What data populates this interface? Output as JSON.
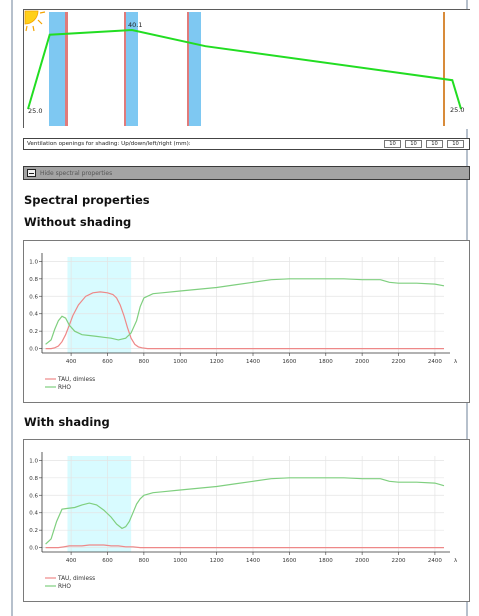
{
  "temperature_profile": {
    "left_value_label": "25.0",
    "peak_value_label": "40.1",
    "right_value_label": "25.0",
    "sun_icon": "sun-icon",
    "line_color": "#22dd22",
    "pane_color": "#7ec8f2",
    "coating_color": "#e07b7b",
    "exterior_color": "#d88b3a",
    "profile_points": [
      {
        "position": 0.0,
        "temp": 25.0
      },
      {
        "position": 0.05,
        "temp": 39.2
      },
      {
        "position": 0.24,
        "temp": 40.1
      },
      {
        "position": 0.41,
        "temp": 37.0
      },
      {
        "position": 0.98,
        "temp": 30.5
      },
      {
        "position": 1.0,
        "temp": 25.0
      }
    ]
  },
  "ventilation": {
    "label": "Ventilation openings for shading: Up/down/left/right (mm):",
    "values": [
      "10",
      "10",
      "10",
      "10"
    ]
  },
  "hide_button": {
    "label": "Hide spectral properties",
    "icon": "collapse-minus-icon"
  },
  "spectral": {
    "heading": "Spectral properties",
    "without_heading": "Without shading",
    "with_heading": "With shading"
  },
  "chart_data": [
    {
      "type": "line",
      "title": "Without shading",
      "xlabel": "λ",
      "ylabel": "",
      "xlim": [
        240,
        2450
      ],
      "ylim": [
        -0.05,
        1.05
      ],
      "xticks": [
        400,
        600,
        800,
        1000,
        1200,
        1400,
        1600,
        1800,
        2000,
        2200,
        2400
      ],
      "yticks": [
        0.0,
        0.2,
        0.4,
        0.6,
        0.8,
        1.0
      ],
      "ytick_labels": [
        "0.0",
        "0.2",
        "0.4",
        "0.6",
        "0.8",
        "1.0"
      ],
      "grid": true,
      "legend_position": "bottom-left",
      "highlight_band": [
        380,
        730
      ],
      "highlight_color": "#d8fbff",
      "series": [
        {
          "name": "TAU, dimless",
          "color": "#ee8888",
          "x": [
            260,
            290,
            310,
            330,
            350,
            370,
            390,
            410,
            440,
            480,
            520,
            560,
            600,
            630,
            650,
            670,
            690,
            710,
            730,
            750,
            770,
            790,
            820,
            900,
            1200,
            1600,
            2000,
            2400,
            2450
          ],
          "y": [
            0.0,
            0.0,
            0.01,
            0.03,
            0.08,
            0.16,
            0.27,
            0.38,
            0.5,
            0.6,
            0.64,
            0.65,
            0.64,
            0.62,
            0.58,
            0.5,
            0.38,
            0.24,
            0.12,
            0.05,
            0.02,
            0.01,
            0.0,
            0.0,
            0.0,
            0.0,
            0.0,
            0.0,
            0.0
          ]
        },
        {
          "name": "RHO",
          "color": "#7fcf7f",
          "x": [
            260,
            290,
            310,
            330,
            350,
            370,
            390,
            420,
            460,
            500,
            540,
            580,
            620,
            660,
            700,
            730,
            760,
            780,
            800,
            850,
            900,
            1000,
            1200,
            1300,
            1400,
            1500,
            1600,
            1700,
            1800,
            1900,
            2000,
            2100,
            2150,
            2200,
            2300,
            2400,
            2450
          ],
          "y": [
            0.05,
            0.1,
            0.22,
            0.32,
            0.37,
            0.35,
            0.27,
            0.2,
            0.16,
            0.15,
            0.14,
            0.13,
            0.12,
            0.1,
            0.12,
            0.18,
            0.32,
            0.48,
            0.58,
            0.63,
            0.64,
            0.66,
            0.7,
            0.73,
            0.76,
            0.79,
            0.8,
            0.8,
            0.8,
            0.8,
            0.79,
            0.79,
            0.76,
            0.75,
            0.75,
            0.74,
            0.72
          ]
        }
      ]
    },
    {
      "type": "line",
      "title": "With shading",
      "xlabel": "λ",
      "ylabel": "",
      "xlim": [
        240,
        2450
      ],
      "ylim": [
        -0.05,
        1.05
      ],
      "xticks": [
        400,
        600,
        800,
        1000,
        1200,
        1400,
        1600,
        1800,
        2000,
        2200,
        2400
      ],
      "yticks": [
        0.0,
        0.2,
        0.4,
        0.6,
        0.8,
        1.0
      ],
      "ytick_labels": [
        "0.0",
        "0.2",
        "0.4",
        "0.6",
        "0.8",
        "1.0"
      ],
      "grid": true,
      "legend_position": "bottom-left",
      "highlight_band": [
        380,
        730
      ],
      "highlight_color": "#d8fbff",
      "series": [
        {
          "name": "TAU, dimless",
          "color": "#ee8888",
          "x": [
            260,
            300,
            330,
            360,
            390,
            420,
            460,
            500,
            540,
            580,
            620,
            660,
            700,
            740,
            780,
            820,
            900,
            1200,
            1600,
            2000,
            2400,
            2450
          ],
          "y": [
            0.0,
            0.0,
            0.0,
            0.01,
            0.02,
            0.02,
            0.02,
            0.03,
            0.03,
            0.03,
            0.02,
            0.02,
            0.01,
            0.01,
            0.0,
            0.0,
            0.0,
            0.0,
            0.0,
            0.0,
            0.0,
            0.0
          ]
        },
        {
          "name": "RHO",
          "color": "#7fcf7f",
          "x": [
            260,
            290,
            320,
            350,
            380,
            420,
            460,
            500,
            540,
            580,
            620,
            650,
            680,
            700,
            720,
            740,
            760,
            780,
            800,
            850,
            900,
            1000,
            1200,
            1300,
            1400,
            1500,
            1600,
            1700,
            1800,
            1900,
            2000,
            2100,
            2150,
            2200,
            2300,
            2400,
            2450
          ],
          "y": [
            0.04,
            0.1,
            0.3,
            0.44,
            0.45,
            0.46,
            0.49,
            0.51,
            0.49,
            0.43,
            0.35,
            0.27,
            0.22,
            0.24,
            0.3,
            0.4,
            0.5,
            0.56,
            0.6,
            0.63,
            0.64,
            0.66,
            0.7,
            0.73,
            0.76,
            0.79,
            0.8,
            0.8,
            0.8,
            0.8,
            0.79,
            0.79,
            0.76,
            0.75,
            0.75,
            0.74,
            0.71
          ]
        }
      ]
    }
  ]
}
